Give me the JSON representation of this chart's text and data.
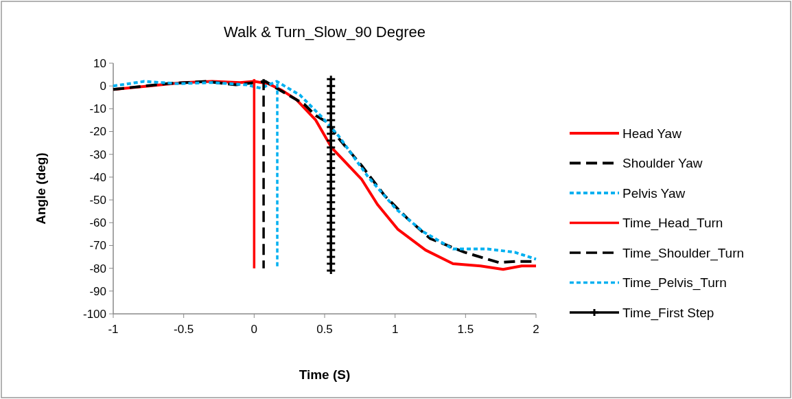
{
  "chart_data": {
    "type": "line",
    "title": "Walk & Turn_Slow_90 Degree",
    "xlabel": "Time (S)",
    "ylabel": "Angle (deg)",
    "xlim": [
      -1,
      2
    ],
    "xticks": [
      -1,
      -0.5,
      0,
      0.5,
      1,
      1.5,
      2
    ],
    "ylim": [
      -100,
      10
    ],
    "yticks": [
      -100,
      -90,
      -80,
      -70,
      -60,
      -50,
      -40,
      -30,
      -20,
      -10,
      0,
      10
    ],
    "grid": false,
    "legend": "right",
    "series": [
      {
        "name": "Head Yaw",
        "color": "#ff0000",
        "line_style": "solid",
        "x": [
          -1,
          -0.75,
          -0.5,
          -0.3,
          -0.1,
          0,
          0.1,
          0.2,
          0.3,
          0.437,
          0.549,
          0.763,
          0.875,
          1.021,
          1.216,
          1.411,
          1.606,
          1.767,
          1.898,
          2
        ],
        "values": [
          -1.5,
          0,
          1.5,
          2,
          1.5,
          2,
          1,
          -2,
          -6,
          -15,
          -27,
          -41,
          -52,
          -63,
          -72,
          -78,
          -79,
          -80.5,
          -79,
          -79
        ]
      },
      {
        "name": "Shoulder Yaw",
        "color": "#000000",
        "line_style": "dashed",
        "x": [
          -1,
          -0.62,
          -0.34,
          -0.13,
          0.08,
          0.16,
          0.355,
          0.437,
          0.52,
          0.6,
          0.763,
          0.924,
          1.085,
          1.25,
          1.494,
          1.737,
          1.864,
          2
        ],
        "values": [
          -1.5,
          1,
          2,
          0.5,
          2,
          -1,
          -8,
          -13,
          -16,
          -23,
          -35,
          -48,
          -58,
          -67,
          -73,
          -77.5,
          -77,
          -77
        ]
      },
      {
        "name": "Pelvis Yaw",
        "color": "#00b0f0",
        "line_style": "dotted",
        "x": [
          -1,
          -0.78,
          -0.54,
          -0.3,
          -0.05,
          0.047,
          0.16,
          0.325,
          0.486,
          0.6,
          0.81,
          1.007,
          1.2,
          1.411,
          1.655,
          1.85,
          2
        ],
        "values": [
          0,
          2,
          1,
          1.5,
          0.5,
          -1,
          2,
          -4,
          -14,
          -22,
          -40,
          -54,
          -64,
          -71.5,
          -71.5,
          -73,
          -76
        ]
      },
      {
        "name": "Time_Head_Turn",
        "color": "#ff0000",
        "line_style": "solid",
        "x": [
          0,
          0
        ],
        "values": [
          3,
          -80
        ]
      },
      {
        "name": "Time_Shoulder_Turn",
        "color": "#000000",
        "line_style": "dashed",
        "x": [
          0.067,
          0.067
        ],
        "values": [
          3,
          -80
        ]
      },
      {
        "name": "Time_Pelvis_Turn",
        "color": "#00b0f0",
        "line_style": "dotted",
        "x": [
          0.164,
          0.164
        ],
        "values": [
          1,
          -80
        ]
      },
      {
        "name": "Time_First Step",
        "color": "#000000",
        "line_style": "solid",
        "marker": "cross",
        "x": [
          0.545,
          0.545,
          0.545,
          0.545,
          0.545,
          0.545,
          0.545,
          0.545,
          0.545,
          0.545,
          0.545,
          0.545,
          0.545,
          0.545,
          0.545,
          0.545,
          0.545,
          0.545,
          0.545,
          0.545,
          0.545,
          0.545,
          0.545,
          0.545,
          0.545,
          0.545,
          0.545,
          0.545,
          0.545
        ],
        "values": [
          3,
          0,
          -3,
          -6,
          -9,
          -12,
          -15,
          -18,
          -21,
          -24,
          -27,
          -30,
          -33,
          -36,
          -39,
          -42,
          -45,
          -48,
          -51,
          -54,
          -57,
          -60,
          -63,
          -66,
          -69,
          -72,
          -75,
          -78,
          -81
        ]
      }
    ]
  }
}
